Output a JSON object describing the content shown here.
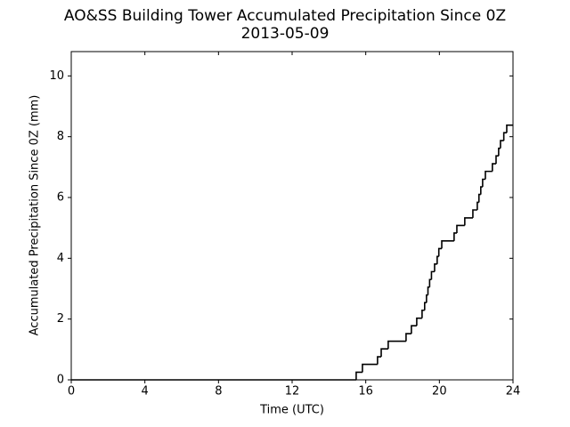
{
  "chart_data": {
    "type": "line",
    "step": "post",
    "title": "AO&SS Building Tower Accumulated Precipitation Since 0Z",
    "subtitle": "2013-05-09",
    "x_label": "Time (UTC)",
    "y_label": "Accumulated Precipitation Since 0Z (mm)",
    "color": "#000000",
    "x": [
      0,
      15.48,
      15.82,
      16.64,
      16.84,
      17.22,
      18.19,
      18.48,
      18.77,
      19.06,
      19.2,
      19.3,
      19.38,
      19.47,
      19.57,
      19.74,
      19.88,
      19.97,
      20.13,
      20.8,
      20.95,
      21.38,
      21.82,
      22.06,
      22.15,
      22.25,
      22.35,
      22.5,
      22.88,
      23.08,
      23.22,
      23.32,
      23.5,
      23.66,
      24
    ],
    "values": [
      0,
      0.25,
      0.51,
      0.76,
      1.02,
      1.27,
      1.52,
      1.78,
      2.03,
      2.29,
      2.54,
      2.79,
      3.05,
      3.3,
      3.56,
      3.81,
      4.06,
      4.32,
      4.57,
      4.83,
      5.08,
      5.33,
      5.59,
      5.84,
      6.1,
      6.35,
      6.6,
      6.86,
      7.11,
      7.37,
      7.62,
      7.87,
      8.13,
      8.38,
      8.38
    ],
    "xlim": [
      0,
      24
    ],
    "xticks": [
      0,
      4,
      8,
      12,
      16,
      20,
      24
    ],
    "ylim": [
      0,
      10.8
    ],
    "yticks": [
      0,
      2,
      4,
      6,
      8,
      10
    ],
    "grid": false
  }
}
